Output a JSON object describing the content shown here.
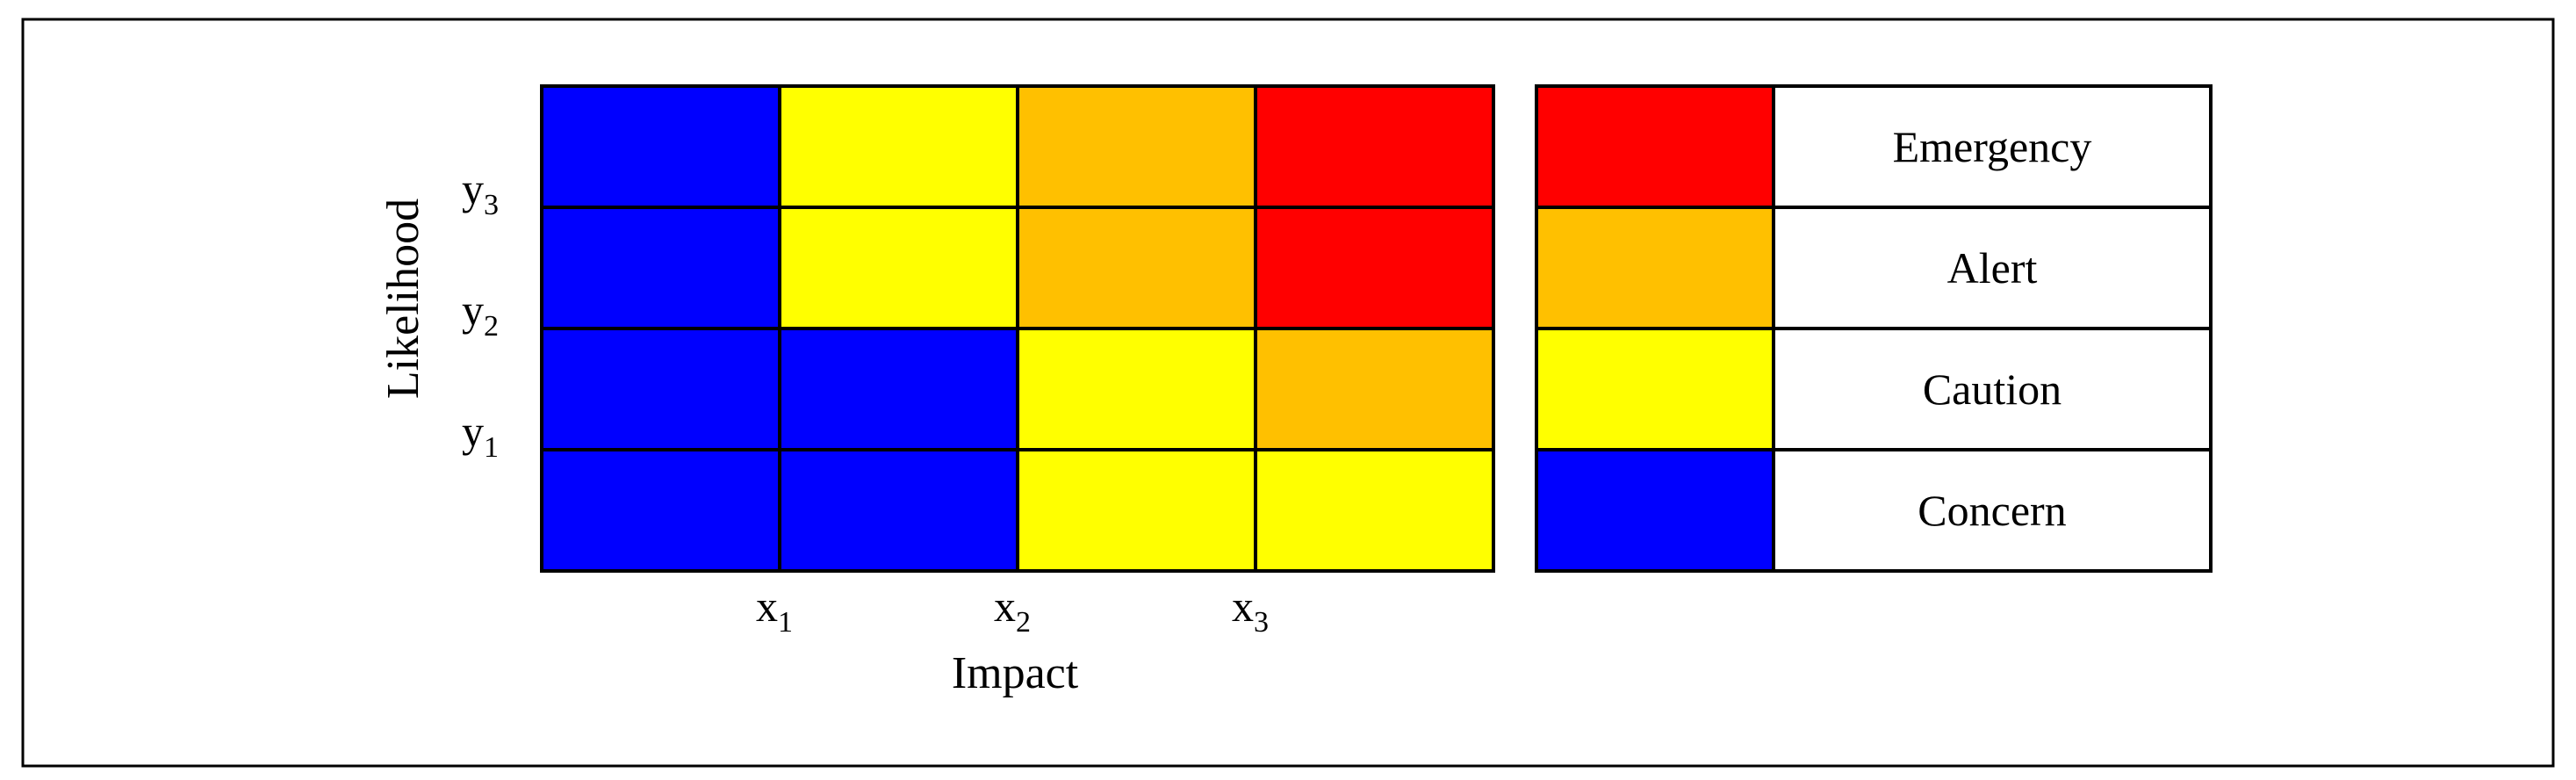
{
  "chart_data": {
    "type": "heatmap",
    "title": "",
    "xlabel": "Impact",
    "ylabel": "Likelihood",
    "x_tick_labels": [
      {
        "base": "x",
        "sub": "1"
      },
      {
        "base": "x",
        "sub": "2"
      },
      {
        "base": "x",
        "sub": "3"
      }
    ],
    "y_tick_labels": [
      {
        "base": "y",
        "sub": "1"
      },
      {
        "base": "y",
        "sub": "2"
      },
      {
        "base": "y",
        "sub": "3"
      }
    ],
    "rows_top_to_bottom": [
      [
        "Concern",
        "Caution",
        "Alert",
        "Emergency"
      ],
      [
        "Concern",
        "Caution",
        "Alert",
        "Emergency"
      ],
      [
        "Concern",
        "Concern",
        "Caution",
        "Alert"
      ],
      [
        "Concern",
        "Concern",
        "Caution",
        "Caution"
      ]
    ],
    "legend": [
      {
        "label": "Emergency",
        "color": "#ff0000"
      },
      {
        "label": "Alert",
        "color": "#ffc000"
      },
      {
        "label": "Caution",
        "color": "#ffff00"
      },
      {
        "label": "Concern",
        "color": "#0000ff"
      }
    ],
    "legend_position": "right",
    "grid": true
  }
}
